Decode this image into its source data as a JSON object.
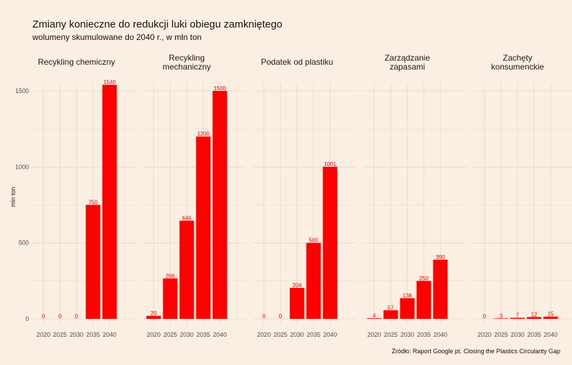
{
  "title": "Zmiany konieczne do redukcji luki obiegu zamkniętego",
  "subtitle": "wolumeny skumulowane do 2040 r., w mln ton",
  "caption": "Źródło:  Raport Google pt. Closing the Plastics Circularity Gap",
  "colors": {
    "bar": "#ff0000",
    "value_label": "#ff0000",
    "grid": "#e2d6cb",
    "background": "#fbeee2"
  },
  "chart_data": {
    "type": "bar",
    "ylabel": "mln ton",
    "ylim": [
      0,
      1600
    ],
    "yticks": [
      0,
      500,
      1000,
      1500
    ],
    "categories": [
      "2020",
      "2025",
      "2030",
      "2035",
      "2040"
    ],
    "grid": true,
    "facets": [
      {
        "title": [
          "Recykling chemiczny"
        ],
        "values": [
          0,
          0,
          0,
          750,
          1540
        ],
        "labels": [
          "0",
          "0",
          "0",
          "750",
          "1540"
        ]
      },
      {
        "title": [
          "Recykling",
          "mechaniczny"
        ],
        "values": [
          20,
          266,
          646,
          1200,
          1500
        ],
        "labels": [
          "20",
          "266",
          "646",
          "1200",
          "1500"
        ]
      },
      {
        "title": [
          "Podatek od plastiku"
        ],
        "values": [
          0,
          0,
          204,
          500,
          1001
        ],
        "labels": [
          "0",
          "0",
          "204",
          "500",
          "1001"
        ]
      },
      {
        "title": [
          "Zarządzanie",
          "zapasami"
        ],
        "values": [
          4,
          57,
          136,
          250,
          390
        ],
        "labels": [
          "4",
          "57",
          "136",
          "250",
          "390"
        ]
      },
      {
        "title": [
          "Zachęty",
          "konsumenckie"
        ],
        "values": [
          0,
          3,
          7,
          12,
          15
        ],
        "labels": [
          "0",
          "3",
          "7",
          "12",
          "15"
        ]
      }
    ]
  }
}
